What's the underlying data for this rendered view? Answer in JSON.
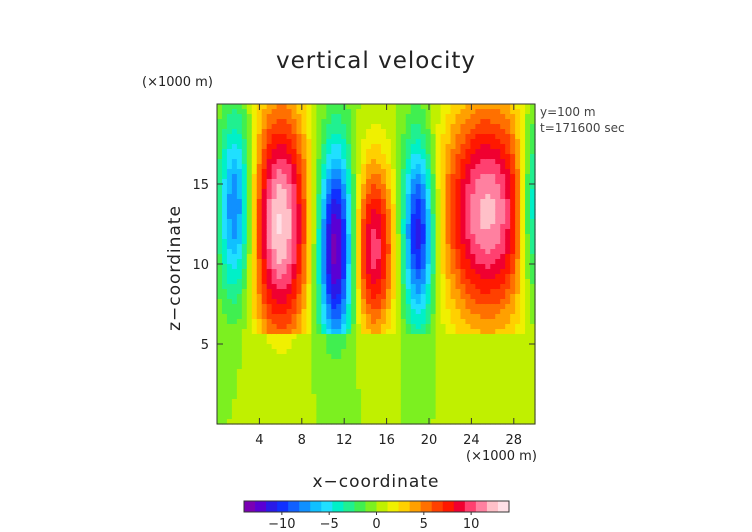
{
  "chart_data": {
    "type": "heatmap",
    "title": "vertical velocity",
    "xlabel": "x−coordinate",
    "ylabel": "z−coordinate",
    "x_unit": "(×1000 m)",
    "y_unit": "(×1000 m)",
    "annotations": [
      "y=100 m",
      "t=171600 sec"
    ],
    "xlim": [
      0,
      30
    ],
    "ylim": [
      0,
      20
    ],
    "xticks": [
      4,
      8,
      12,
      16,
      20,
      24,
      28
    ],
    "xtick_labels": [
      "4",
      "8",
      "12",
      "16",
      "20",
      "24",
      "28"
    ],
    "yticks": [
      5,
      10,
      15
    ],
    "ytick_labels": [
      "5",
      "10",
      "15"
    ],
    "colorbar": {
      "range": [
        -14,
        14
      ],
      "ticks": [
        -10,
        -5,
        0,
        5,
        10
      ],
      "tick_labels": [
        "−10",
        "−5",
        "0",
        "5",
        "10"
      ],
      "colors": [
        "#7a00b4",
        "#5a00d4",
        "#2a1ae8",
        "#1030ff",
        "#1060ff",
        "#1090ff",
        "#10c0ff",
        "#20e0ff",
        "#00f0c8",
        "#20f090",
        "#40ef50",
        "#7cf020",
        "#c0f000",
        "#f0f000",
        "#ffd000",
        "#ffa000",
        "#ff7000",
        "#ff4000",
        "#ff1800",
        "#f00030",
        "#ff4070",
        "#ff80a0",
        "#ffc0c8",
        "#ffe0e6"
      ]
    },
    "features": [
      {
        "kind": "updraft",
        "x": 6.0,
        "z": 12.5,
        "sx": 1.9,
        "sz": 5.2,
        "peak": 13
      },
      {
        "kind": "updraft",
        "x": 14.8,
        "z": 11.0,
        "sx": 1.4,
        "sz": 3.8,
        "peak": 10
      },
      {
        "kind": "updraft",
        "x": 25.5,
        "z": 13.2,
        "sx": 3.0,
        "sz": 4.8,
        "peak": 12
      },
      {
        "kind": "downdraft",
        "x": 1.8,
        "z": 13.5,
        "sx": 1.1,
        "sz": 4.0,
        "peak": -9
      },
      {
        "kind": "downdraft",
        "x": 11.2,
        "z": 11.0,
        "sx": 1.2,
        "sz": 4.5,
        "peak": -14
      },
      {
        "kind": "downdraft",
        "x": 19.0,
        "z": 12.0,
        "sx": 1.1,
        "sz": 4.0,
        "peak": -12
      },
      {
        "kind": "downdraft",
        "x": 29.8,
        "z": 13.5,
        "sx": 0.9,
        "sz": 4.0,
        "peak": -8
      }
    ]
  }
}
